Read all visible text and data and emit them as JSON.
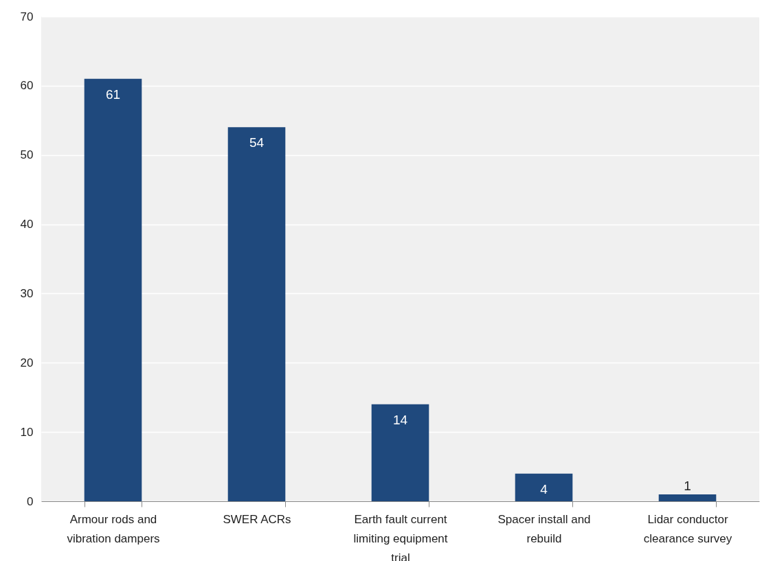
{
  "chart_data": {
    "type": "bar",
    "categories": [
      "Armour rods and vibration dampers",
      "SWER ACRs",
      "Earth fault current limiting equipment trial",
      "Spacer install and rebuild",
      "Lidar conductor clearance survey"
    ],
    "values": [
      61,
      54,
      14,
      4,
      1
    ],
    "color": "#1f497d",
    "data_labels": true,
    "ylim": [
      0,
      70
    ],
    "yticks": [
      0,
      10,
      20,
      30,
      40,
      50,
      60,
      70
    ],
    "grid": "y"
  }
}
